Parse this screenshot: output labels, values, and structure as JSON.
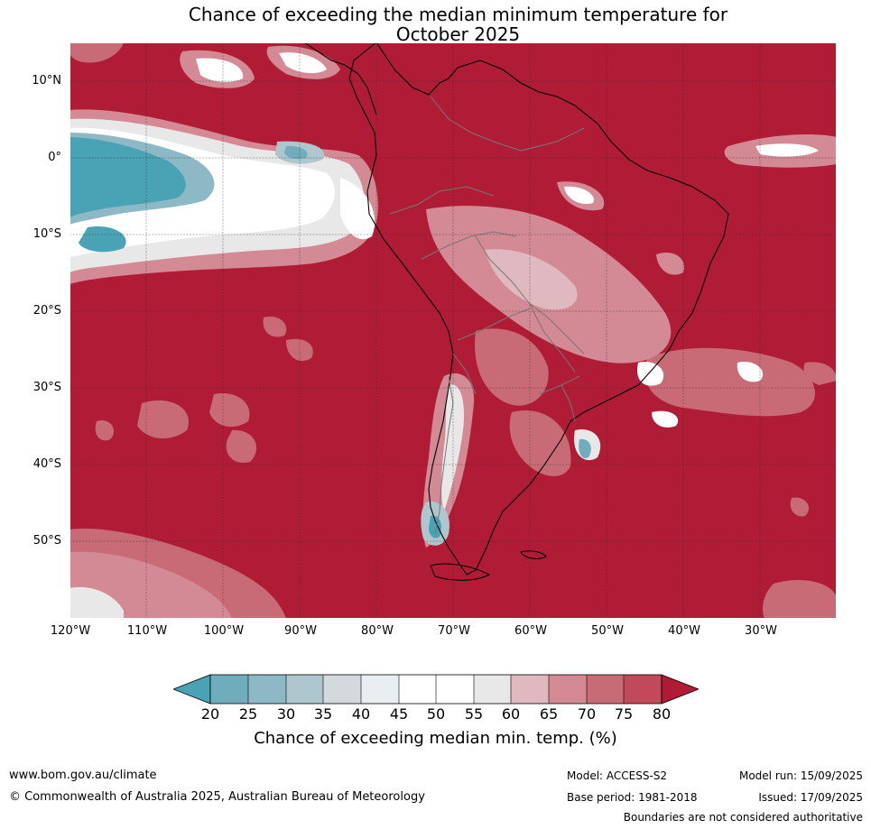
{
  "title": {
    "line1": "Chance of exceeding the median minimum temperature for",
    "line2": "October 2025"
  },
  "map": {
    "lat_labels": [
      "10°N",
      "0°",
      "10°S",
      "20°S",
      "30°S",
      "40°S",
      "50°S"
    ],
    "lon_labels": [
      "120°W",
      "110°W",
      "100°W",
      "90°W",
      "80°W",
      "70°W",
      "60°W",
      "50°W",
      "40°W",
      "30°W"
    ],
    "colors": {
      "p20": "#4aa3b5",
      "p25": "#6fadbc",
      "p30": "#8db8c6",
      "p35": "#aec7cf",
      "p40": "#d3d9dc",
      "p45": "#e9eef1",
      "p50": "#ffffff",
      "p55": "#ffffff",
      "p60": "#e8e8e8",
      "p65": "#e0b8c0",
      "p70": "#d48a95",
      "p75": "#c86b77",
      "p80": "#c04a59",
      "p80plus": "#b01c36",
      "grid": "#2a2a2a",
      "coast": "#000000",
      "border": "#777777"
    }
  },
  "colorbar": {
    "ticks": [
      "20",
      "25",
      "30",
      "35",
      "40",
      "45",
      "50",
      "55",
      "60",
      "65",
      "70",
      "75",
      "80"
    ],
    "label": "Chance of exceeding median min. temp. (%)"
  },
  "footer": {
    "website": "www.bom.gov.au/climate",
    "copyright": "© Commonwealth of Australia 2025, Australian Bureau of Meteorology",
    "model": "Model: ACCESS-S2",
    "base_period": "Base period: 1981-2018",
    "model_run": "Model run: 15/09/2025",
    "issued": "Issued: 17/09/2025",
    "disclaimer": "Boundaries are not considered authoritative"
  }
}
